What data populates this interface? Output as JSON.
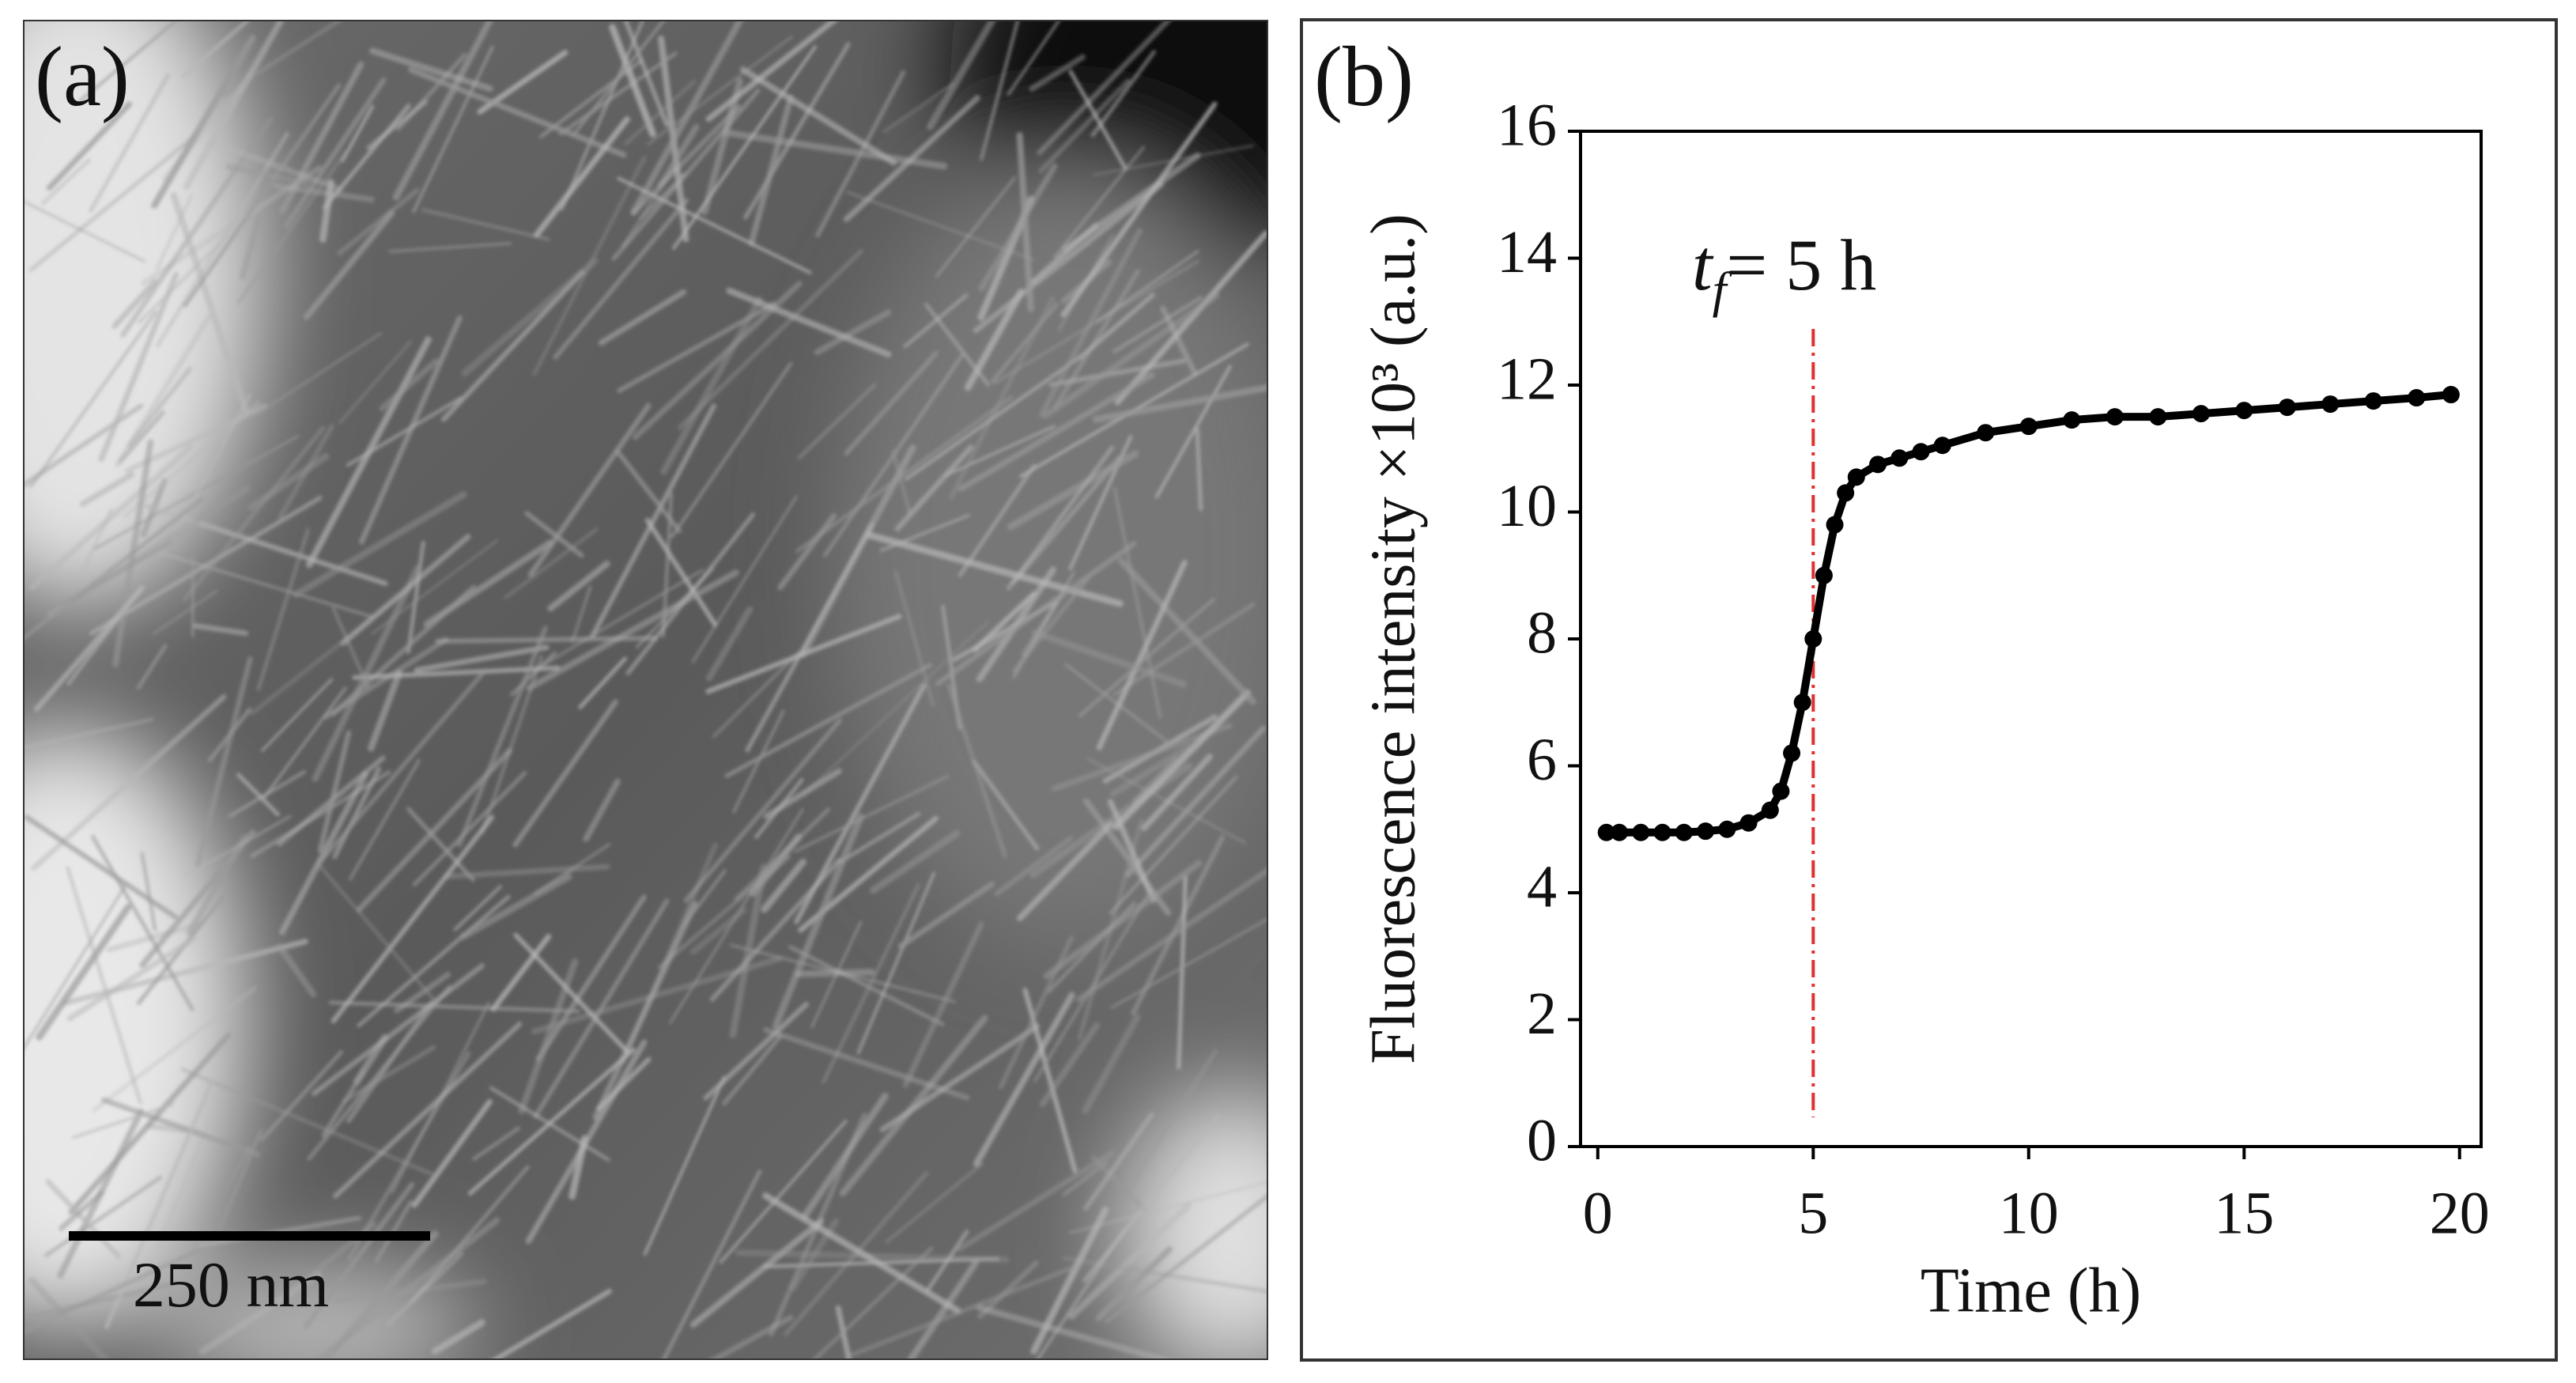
{
  "panel_a": {
    "label": "(a)",
    "scale_bar": "250 nm"
  },
  "chart_data": {
    "type": "scatter",
    "panel_label": "(b)",
    "x_label": "Time (h)",
    "y_label": "Fluorescence intensity ×10³ (a.u.)",
    "annotation": {
      "symbol": "t",
      "subscript": "f",
      "text": "= 5 h",
      "x": 5,
      "color": "#e03030"
    },
    "xlim": [
      -0.4,
      20.5
    ],
    "ylim": [
      0,
      16
    ],
    "xticks": [
      0,
      5,
      10,
      15,
      20
    ],
    "yticks": [
      0,
      2,
      4,
      6,
      8,
      10,
      12,
      14,
      16
    ],
    "series": [
      {
        "color": "#000000",
        "x": [
          0.2,
          0.5,
          1,
          1.5,
          2,
          2.5,
          3,
          3.5,
          4,
          4.25,
          4.5,
          4.75,
          5,
          5.25,
          5.5,
          5.75,
          6,
          6.5,
          7,
          7.5,
          8,
          9,
          10,
          11,
          12,
          13,
          14,
          15,
          16,
          17,
          18,
          19,
          19.8
        ],
        "values": [
          4.95,
          4.95,
          4.95,
          4.95,
          4.95,
          4.97,
          5.0,
          5.1,
          5.3,
          5.6,
          6.2,
          7.0,
          8.0,
          9.0,
          9.8,
          10.3,
          10.55,
          10.75,
          10.85,
          10.95,
          11.05,
          11.25,
          11.35,
          11.45,
          11.5,
          11.5,
          11.55,
          11.6,
          11.65,
          11.7,
          11.75,
          11.8,
          11.85
        ]
      }
    ]
  }
}
